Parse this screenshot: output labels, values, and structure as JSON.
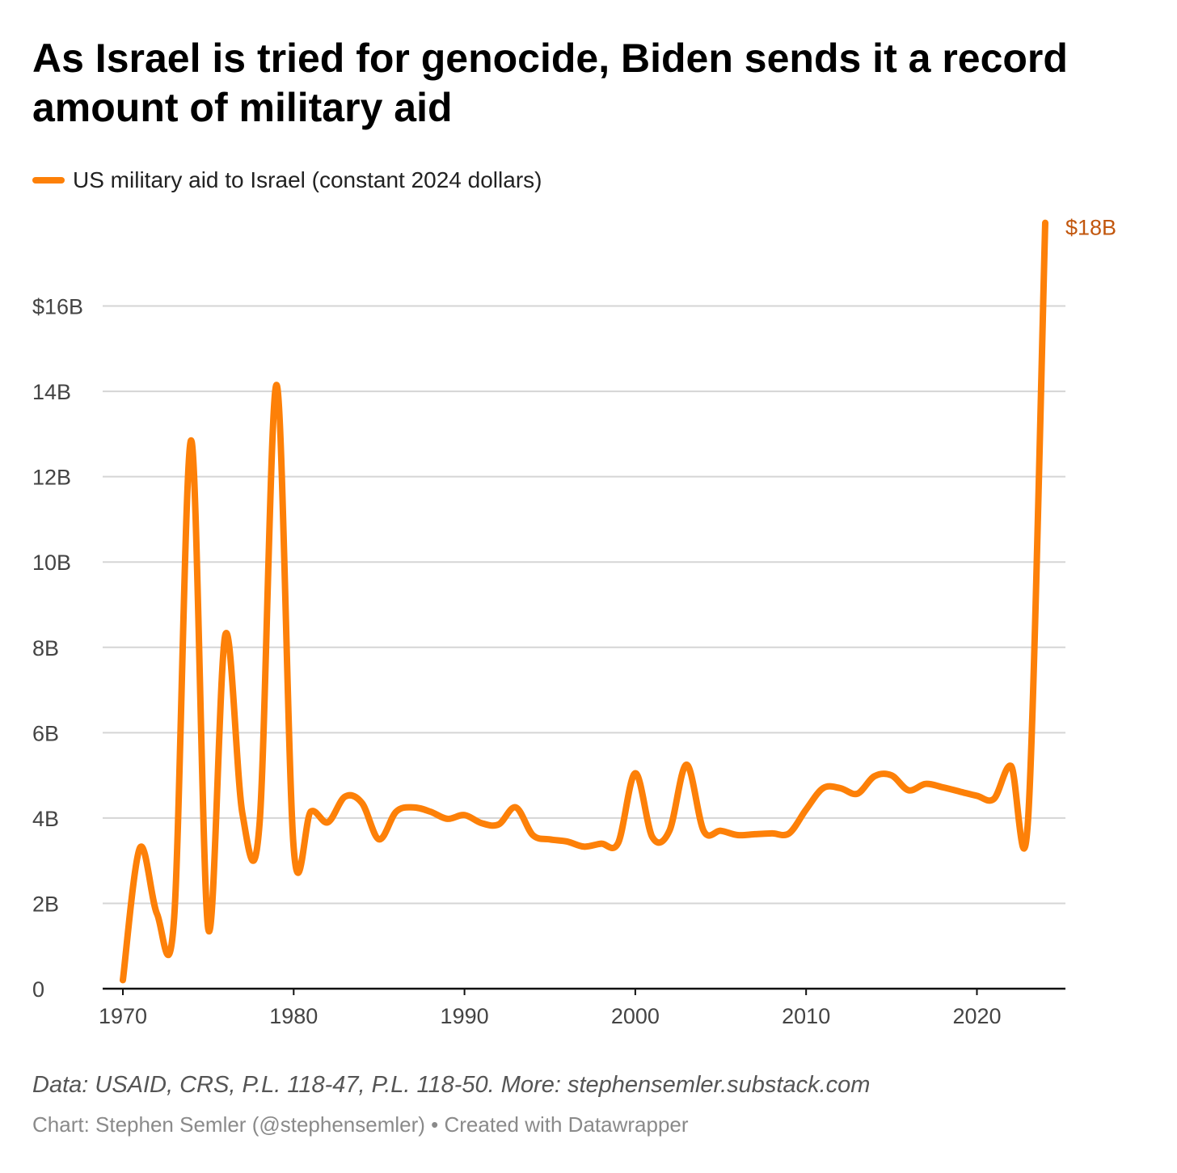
{
  "chart_data": {
    "type": "line",
    "title": "As Israel is tried for genocide, Biden sends it a record amount of military aid",
    "xlabel": "",
    "ylabel": "",
    "xlim": [
      1970,
      2025
    ],
    "ylim": [
      0,
      18
    ],
    "y_ticks": [
      0,
      2,
      4,
      6,
      8,
      10,
      12,
      14,
      16
    ],
    "y_tick_labels": [
      "0",
      "2B",
      "4B",
      "6B",
      "8B",
      "10B",
      "12B",
      "14B",
      "$16B"
    ],
    "x_ticks": [
      1970,
      1980,
      1990,
      2000,
      2010,
      2020
    ],
    "x_tick_labels": [
      "1970",
      "1980",
      "1990",
      "2000",
      "2010",
      "2020"
    ],
    "grid": true,
    "legend_position": "top-left",
    "series": [
      {
        "name": "US military aid to Israel (constant 2024 dollars)",
        "color": "#fd8008",
        "end_label": "$18B",
        "x": [
          1970,
          1971,
          1972,
          1973,
          1974,
          1975,
          1976,
          1977,
          1978,
          1979,
          1980,
          1981,
          1982,
          1983,
          1984,
          1985,
          1986,
          1987,
          1988,
          1989,
          1990,
          1991,
          1992,
          1993,
          1994,
          1995,
          1996,
          1997,
          1998,
          1999,
          2000,
          2001,
          2002,
          2003,
          2004,
          2005,
          2006,
          2007,
          2008,
          2009,
          2010,
          2011,
          2012,
          2013,
          2014,
          2015,
          2016,
          2017,
          2018,
          2019,
          2020,
          2021,
          2022,
          2023,
          2024
        ],
        "values": [
          0.2,
          3.3,
          1.75,
          1.65,
          12.85,
          1.4,
          8.3,
          4.1,
          3.85,
          14.15,
          3.3,
          4.15,
          3.9,
          4.5,
          4.35,
          3.5,
          4.15,
          4.25,
          4.15,
          3.98,
          4.07,
          3.88,
          3.85,
          4.25,
          3.6,
          3.5,
          3.45,
          3.33,
          3.4,
          3.42,
          5.05,
          3.55,
          3.7,
          5.25,
          3.7,
          3.7,
          3.6,
          3.62,
          3.64,
          3.64,
          4.2,
          4.7,
          4.7,
          4.57,
          4.98,
          5.0,
          4.65,
          4.8,
          4.72,
          4.62,
          4.52,
          4.45,
          5.22,
          4.0,
          17.95
        ]
      }
    ]
  },
  "notes": "Data: USAID, CRS, P.L. 118-47, P.L. 118-50. More: stephensemler.substack.com",
  "byline": "Chart: Stephen Semler (@stephensemler) • Created with Datawrapper"
}
